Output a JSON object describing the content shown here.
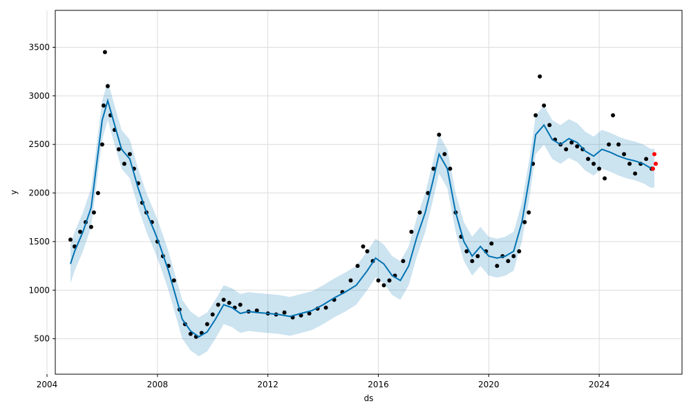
{
  "chart_data": {
    "type": "line",
    "title": "",
    "xlabel": "ds",
    "ylabel": "y",
    "xlim": [
      2004.3,
      2027.0
    ],
    "ylim": [
      135,
      3880
    ],
    "grid": true,
    "x_ticks": [
      2004,
      2008,
      2012,
      2016,
      2020,
      2024
    ],
    "x_tick_labels": [
      "2004",
      "2008",
      "2012",
      "2016",
      "2020",
      "2024"
    ],
    "y_ticks": [
      500,
      1000,
      1500,
      2000,
      2500,
      3000,
      3500
    ],
    "y_tick_labels": [
      "500",
      "1000",
      "1500",
      "2000",
      "2500",
      "3000",
      "3500"
    ],
    "series": [
      {
        "kind": "forecast",
        "color": "#0072B2",
        "x": [
          2004.85,
          2005.0,
          2005.3,
          2005.6,
          2005.8,
          2006.0,
          2006.2,
          2006.4,
          2006.7,
          2007.0,
          2007.3,
          2007.6,
          2007.9,
          2008.1,
          2008.4,
          2008.7,
          2008.9,
          2009.2,
          2009.5,
          2009.8,
          2010.1,
          2010.4,
          2010.7,
          2011.0,
          2011.3,
          2011.6,
          2012.0,
          2012.4,
          2012.8,
          2013.2,
          2013.6,
          2014.0,
          2014.4,
          2014.8,
          2015.2,
          2015.6,
          2015.9,
          2016.2,
          2016.5,
          2016.8,
          2017.1,
          2017.4,
          2017.7,
          2018.0,
          2018.2,
          2018.5,
          2018.8,
          2019.1,
          2019.4,
          2019.7,
          2020.0,
          2020.3,
          2020.6,
          2020.9,
          2021.2,
          2021.5,
          2021.7,
          2022.0,
          2022.3,
          2022.6,
          2022.9,
          2023.2,
          2023.5,
          2023.8,
          2024.1,
          2024.4,
          2024.7,
          2025.0,
          2025.3,
          2025.6,
          2025.9,
          2026.0
        ],
        "y": [
          1270,
          1400,
          1600,
          1850,
          2300,
          2750,
          2950,
          2750,
          2450,
          2350,
          2050,
          1800,
          1600,
          1450,
          1200,
          900,
          700,
          580,
          520,
          570,
          700,
          850,
          820,
          760,
          780,
          770,
          760,
          750,
          730,
          760,
          790,
          850,
          920,
          980,
          1050,
          1200,
          1330,
          1270,
          1150,
          1100,
          1250,
          1550,
          1800,
          2150,
          2400,
          2250,
          1800,
          1500,
          1350,
          1450,
          1350,
          1330,
          1350,
          1400,
          1700,
          2200,
          2600,
          2700,
          2550,
          2500,
          2560,
          2520,
          2430,
          2380,
          2450,
          2420,
          2380,
          2350,
          2330,
          2300,
          2250,
          2260
        ],
        "upper": [
          1470,
          1600,
          1800,
          2050,
          2500,
          2950,
          3150,
          2950,
          2650,
          2550,
          2250,
          2000,
          1800,
          1650,
          1400,
          1100,
          900,
          780,
          720,
          770,
          900,
          1050,
          1020,
          960,
          980,
          970,
          960,
          950,
          930,
          960,
          990,
          1050,
          1120,
          1180,
          1250,
          1400,
          1530,
          1470,
          1350,
          1300,
          1450,
          1750,
          2000,
          2350,
          2600,
          2450,
          2000,
          1700,
          1550,
          1650,
          1550,
          1530,
          1550,
          1600,
          1900,
          2400,
          2800,
          2900,
          2750,
          2700,
          2760,
          2720,
          2630,
          2580,
          2650,
          2620,
          2580,
          2550,
          2530,
          2500,
          2450,
          2460
        ],
        "lower": [
          1070,
          1200,
          1400,
          1650,
          2100,
          2550,
          2750,
          2550,
          2250,
          2150,
          1850,
          1600,
          1400,
          1250,
          1000,
          700,
          500,
          380,
          320,
          370,
          500,
          650,
          620,
          560,
          580,
          570,
          560,
          550,
          530,
          560,
          590,
          650,
          720,
          780,
          850,
          1000,
          1130,
          1070,
          950,
          900,
          1050,
          1350,
          1600,
          1950,
          2200,
          2050,
          1600,
          1300,
          1150,
          1250,
          1150,
          1130,
          1150,
          1200,
          1500,
          2000,
          2400,
          2500,
          2350,
          2300,
          2360,
          2320,
          2230,
          2180,
          2250,
          2220,
          2180,
          2150,
          2130,
          2100,
          2050,
          2060
        ]
      },
      {
        "kind": "observed",
        "color": "#000000",
        "x": [
          2004.85,
          2005.0,
          2005.2,
          2005.4,
          2005.6,
          2005.7,
          2005.85,
          2006.0,
          2006.05,
          2006.1,
          2006.2,
          2006.3,
          2006.45,
          2006.6,
          2006.8,
          2007.0,
          2007.15,
          2007.3,
          2007.45,
          2007.6,
          2007.8,
          2008.0,
          2008.2,
          2008.4,
          2008.6,
          2008.8,
          2009.0,
          2009.2,
          2009.4,
          2009.6,
          2009.8,
          2010.0,
          2010.2,
          2010.4,
          2010.6,
          2010.8,
          2011.0,
          2011.3,
          2011.6,
          2012.0,
          2012.3,
          2012.6,
          2012.9,
          2013.2,
          2013.5,
          2013.8,
          2014.1,
          2014.4,
          2014.7,
          2015.0,
          2015.25,
          2015.45,
          2015.6,
          2015.8,
          2016.0,
          2016.2,
          2016.4,
          2016.6,
          2016.9,
          2017.2,
          2017.5,
          2017.8,
          2018.0,
          2018.2,
          2018.4,
          2018.6,
          2018.8,
          2019.0,
          2019.2,
          2019.4,
          2019.6,
          2019.9,
          2020.1,
          2020.3,
          2020.5,
          2020.7,
          2020.9,
          2021.1,
          2021.3,
          2021.45,
          2021.6,
          2021.7,
          2021.85,
          2022.0,
          2022.2,
          2022.4,
          2022.6,
          2022.8,
          2023.0,
          2023.2,
          2023.4,
          2023.6,
          2023.8,
          2024.0,
          2024.2,
          2024.35,
          2024.5,
          2024.7,
          2024.9,
          2025.1,
          2025.3,
          2025.5,
          2025.7,
          2025.9
        ],
        "y": [
          1520,
          1450,
          1600,
          1700,
          1650,
          1800,
          2000,
          2500,
          2900,
          3450,
          3100,
          2800,
          2650,
          2450,
          2300,
          2400,
          2250,
          2100,
          1900,
          1800,
          1700,
          1500,
          1350,
          1250,
          1100,
          800,
          650,
          550,
          520,
          560,
          650,
          750,
          850,
          900,
          870,
          820,
          850,
          780,
          790,
          760,
          750,
          770,
          720,
          740,
          760,
          810,
          820,
          900,
          980,
          1100,
          1250,
          1450,
          1400,
          1300,
          1100,
          1050,
          1100,
          1150,
          1300,
          1600,
          1800,
          2000,
          2250,
          2600,
          2400,
          2250,
          1800,
          1550,
          1400,
          1300,
          1350,
          1400,
          1480,
          1250,
          1350,
          1300,
          1350,
          1400,
          1700,
          1800,
          2300,
          2800,
          3200,
          2900,
          2700,
          2550,
          2500,
          2450,
          2520,
          2480,
          2450,
          2350,
          2300,
          2250,
          2150,
          2500,
          2800,
          2500,
          2400,
          2300,
          2200,
          2300,
          2350,
          2250
        ]
      },
      {
        "kind": "recent",
        "color": "#FF0000",
        "x": [
          2025.95,
          2026.0,
          2026.05
        ],
        "y": [
          2250,
          2400,
          2300
        ]
      }
    ]
  }
}
